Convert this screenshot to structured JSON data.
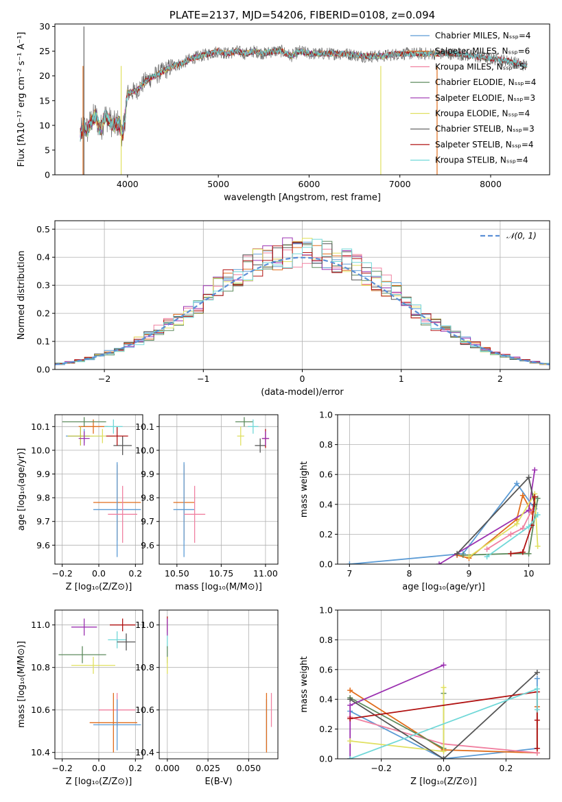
{
  "chart_data": [
    {
      "type": "line",
      "panel": "spectrum",
      "title": "PLATE=2137, MJD=54206, FIBERID=0108, z=0.094",
      "xlabel": "wavelength [Angstrom, rest frame]",
      "ylabel": "Flux [fλ10⁻¹⁷ erg cm⁻² s⁻¹ A⁻¹]",
      "xlim": [
        3200,
        8650
      ],
      "ylim": [
        0,
        30.5
      ],
      "xticks": [
        4000,
        5000,
        6000,
        7000,
        8000
      ],
      "yticks": [
        0,
        5,
        10,
        15,
        20,
        25,
        30
      ],
      "grid": false,
      "legend_position": "right",
      "data_spectrum_envelope": {
        "x": [
          3480,
          3520,
          3560,
          3600,
          3650,
          3700,
          3750,
          3800,
          3850,
          3900,
          3950,
          4000,
          4100,
          4200,
          4300,
          4400,
          4500,
          4600,
          4700,
          4800,
          4900,
          5000,
          5100,
          5200,
          5300,
          5400,
          5500,
          5600,
          5700,
          5800,
          5900,
          6000,
          6200,
          6400,
          6600,
          6800,
          7000,
          7200,
          7400,
          7600,
          7800,
          8000,
          8200,
          8400
        ],
        "y": [
          8,
          10,
          9,
          11,
          12,
          9,
          12,
          11,
          10,
          10.5,
          8,
          16.5,
          17,
          19,
          20,
          21,
          22,
          22.5,
          23.5,
          24,
          24.5,
          25,
          24.5,
          25,
          24.5,
          25,
          24.5,
          25,
          25,
          24,
          25,
          24.5,
          24.5,
          24.5,
          24,
          24,
          24.5,
          24.5,
          24.5,
          24.5,
          24,
          23.5,
          23,
          22
        ]
      },
      "series": [
        {
          "name": "Chabrier MILES, N_SSP=4"
        },
        {
          "name": "Salpeter MILES, N_SSP=6"
        },
        {
          "name": "Kroupa MILES, N_SSP=5"
        },
        {
          "name": "Chabrier ELODIE, N_SSP=4"
        },
        {
          "name": "Salpeter ELODIE, N_SSP=3"
        },
        {
          "name": "Kroupa ELODIE, N_SSP=4"
        },
        {
          "name": "Chabrier STELIB, N_SSP=3"
        },
        {
          "name": "Salpeter STELIB, N_SSP=4"
        },
        {
          "name": "Kroupa STELIB, N_SSP=4"
        }
      ]
    },
    {
      "type": "step",
      "panel": "residual-histogram",
      "xlabel": "(data-model)/error",
      "ylabel": "Normed distribution",
      "xlim": [
        -2.5,
        2.5
      ],
      "ylim": [
        0,
        0.53
      ],
      "xticks": [
        -2,
        -1,
        0,
        1,
        2
      ],
      "yticks": [
        0.0,
        0.1,
        0.2,
        0.3,
        0.4,
        0.5
      ],
      "grid": true,
      "legend_position": "top-right",
      "reference_curve": {
        "name": "𝒩(0, 1)",
        "mean": 0,
        "sigma": 1
      },
      "bins": {
        "start": -2.5,
        "width": 0.1,
        "count": 50
      }
    },
    {
      "type": "scatter-errorbar",
      "panel": "age-vs-Z",
      "xlabel": "Z [log₁₀(Z/Z⊙)]",
      "ylabel": "age  [log₁₀(age/yr)]",
      "xlim": [
        -0.24,
        0.24
      ],
      "ylim": [
        9.52,
        10.15
      ],
      "xticks": [
        -0.2,
        0.0,
        0.2
      ],
      "yticks": [
        9.6,
        9.7,
        9.8,
        9.9,
        10.0,
        10.1
      ],
      "grid": true,
      "points": [
        {
          "x": -0.08,
          "y": 10.06,
          "xerr": 0.1,
          "yerr": 0.03,
          "color": "#5b9bd5"
        },
        {
          "x": -0.03,
          "y": 10.1,
          "xerr": 0.08,
          "yerr": 0.03,
          "color": "#e06c1b"
        },
        {
          "x": -0.1,
          "y": 10.06,
          "xerr": 0.07,
          "yerr": 0.04,
          "color": "#c0c040"
        },
        {
          "x": -0.08,
          "y": 10.12,
          "xerr": 0.12,
          "yerr": 0.02,
          "color": "#5c8a5c"
        },
        {
          "x": -0.08,
          "y": 10.05,
          "xerr": 0.03,
          "yerr": 0.03,
          "color": "#9b30b0"
        },
        {
          "x": 0.02,
          "y": 10.06,
          "xerr": 0.07,
          "yerr": 0.03,
          "color": "#e0e060"
        },
        {
          "x": 0.13,
          "y": 10.02,
          "xerr": 0.05,
          "yerr": 0.04,
          "color": "#555555"
        },
        {
          "x": 0.1,
          "y": 10.06,
          "xerr": 0.06,
          "yerr": 0.04,
          "color": "#b01010"
        },
        {
          "x": 0.08,
          "y": 10.1,
          "xerr": 0.05,
          "yerr": 0.03,
          "color": "#70d8d8"
        },
        {
          "x": 0.1,
          "y": 9.78,
          "xerr": 0.13,
          "yerr": 0.16,
          "color": "#e06c1b"
        },
        {
          "x": 0.1,
          "y": 9.75,
          "xerr": 0.13,
          "yerr": 0.2,
          "color": "#5b9bd5"
        },
        {
          "x": 0.13,
          "y": 9.73,
          "xerr": 0.08,
          "yerr": 0.12,
          "color": "#f080a0"
        }
      ]
    },
    {
      "type": "scatter-errorbar",
      "panel": "age-vs-mass",
      "xlabel": "mass [log₁₀(M/M⊙)]",
      "ylabel": "",
      "xlim": [
        10.4,
        11.07
      ],
      "ylim": [
        9.52,
        10.15
      ],
      "xticks": [
        10.5,
        10.75,
        11.0
      ],
      "yticks": [
        9.6,
        9.7,
        9.8,
        9.9,
        10.0,
        10.1
      ],
      "grid": true,
      "points": [
        {
          "x": 10.88,
          "y": 10.12,
          "xerr": 0.05,
          "yerr": 0.02,
          "color": "#5c8a5c"
        },
        {
          "x": 10.86,
          "y": 10.06,
          "xerr": 0.02,
          "yerr": 0.04,
          "color": "#e0e060"
        },
        {
          "x": 10.93,
          "y": 10.1,
          "xerr": 0.03,
          "yerr": 0.03,
          "color": "#70d8d8"
        },
        {
          "x": 10.97,
          "y": 10.02,
          "xerr": 0.03,
          "yerr": 0.03,
          "color": "#555555"
        },
        {
          "x": 11.0,
          "y": 10.05,
          "xerr": 0.02,
          "yerr": 0.04,
          "color": "#b01010"
        },
        {
          "x": 11.0,
          "y": 10.05,
          "xerr": 0.02,
          "yerr": 0.03,
          "color": "#9b30b0"
        },
        {
          "x": 10.54,
          "y": 9.78,
          "xerr": 0.06,
          "yerr": 0.16,
          "color": "#e06c1b"
        },
        {
          "x": 10.54,
          "y": 9.75,
          "xerr": 0.06,
          "yerr": 0.2,
          "color": "#5b9bd5"
        },
        {
          "x": 10.6,
          "y": 9.73,
          "xerr": 0.06,
          "yerr": 0.12,
          "color": "#f080a0"
        }
      ]
    },
    {
      "type": "line",
      "panel": "mass-weight-vs-age",
      "xlabel": "age  [log₁₀(age/yr)]",
      "ylabel": "mass weight",
      "xlim": [
        6.8,
        10.35
      ],
      "ylim": [
        0,
        1.0
      ],
      "xticks": [
        7,
        8,
        9,
        10
      ],
      "yticks": [
        0.0,
        0.2,
        0.4,
        0.6,
        0.8,
        1.0
      ],
      "grid": true,
      "series": [
        {
          "x": [
            7.0,
            8.9,
            9.8,
            10.1
          ],
          "y": [
            0.0,
            0.07,
            0.54,
            0.37
          ],
          "color": "#5b9bd5"
        },
        {
          "x": [
            8.8,
            9.0,
            9.8,
            9.9,
            10.05
          ],
          "y": [
            0.06,
            0.04,
            0.3,
            0.46,
            0.35
          ],
          "color": "#e06c1b"
        },
        {
          "x": [
            9.3,
            9.7,
            9.9,
            10.1
          ],
          "y": [
            0.1,
            0.2,
            0.24,
            0.4
          ],
          "color": "#f080a0"
        },
        {
          "x": [
            8.9,
            9.7,
            10.0,
            10.15
          ],
          "y": [
            0.06,
            0.07,
            0.07,
            0.44
          ],
          "color": "#5c8a5c"
        },
        {
          "x": [
            8.5,
            10.0,
            10.1
          ],
          "y": [
            0.0,
            0.36,
            0.63
          ],
          "color": "#9b30b0"
        },
        {
          "x": [
            9.0,
            9.8,
            10.1,
            10.15
          ],
          "y": [
            0.05,
            0.27,
            0.47,
            0.12
          ],
          "color": "#e0e060"
        },
        {
          "x": [
            8.8,
            10.0,
            10.1
          ],
          "y": [
            0.07,
            0.58,
            0.4
          ],
          "color": "#555555"
        },
        {
          "x": [
            9.7,
            9.9,
            10.05,
            10.1
          ],
          "y": [
            0.07,
            0.08,
            0.26,
            0.45
          ],
          "color": "#b01010"
        },
        {
          "x": [
            9.3,
            10.0,
            10.15
          ],
          "y": [
            0.05,
            0.25,
            0.33
          ],
          "color": "#70d8d8"
        }
      ]
    },
    {
      "type": "scatter-errorbar",
      "panel": "mass-vs-Z",
      "xlabel": "Z [log₁₀(Z/Z⊙)]",
      "ylabel": "mass [log₁₀(M/M⊙)]",
      "xlim": [
        -0.24,
        0.24
      ],
      "ylim": [
        10.37,
        11.07
      ],
      "xticks": [
        -0.2,
        0.0,
        0.2
      ],
      "yticks": [
        10.4,
        10.6,
        10.8,
        11.0
      ],
      "grid": true,
      "points": [
        {
          "x": -0.08,
          "y": 10.99,
          "xerr": 0.07,
          "yerr": 0.04,
          "color": "#9b30b0"
        },
        {
          "x": -0.09,
          "y": 10.86,
          "xerr": 0.13,
          "yerr": 0.04,
          "color": "#5c8a5c"
        },
        {
          "x": -0.03,
          "y": 10.81,
          "xerr": 0.12,
          "yerr": 0.04,
          "color": "#e0e060"
        },
        {
          "x": 0.13,
          "y": 11.0,
          "xerr": 0.07,
          "yerr": 0.03,
          "color": "#b01010"
        },
        {
          "x": 0.1,
          "y": 10.93,
          "xerr": 0.05,
          "yerr": 0.04,
          "color": "#70d8d8"
        },
        {
          "x": 0.15,
          "y": 10.92,
          "xerr": 0.05,
          "yerr": 0.04,
          "color": "#555555"
        },
        {
          "x": 0.1,
          "y": 10.6,
          "xerr": 0.1,
          "yerr": 0.08,
          "color": "#f080a0"
        },
        {
          "x": 0.08,
          "y": 10.54,
          "xerr": 0.13,
          "yerr": 0.14,
          "color": "#e06c1b"
        },
        {
          "x": 0.1,
          "y": 10.53,
          "xerr": 0.13,
          "yerr": 0.12,
          "color": "#5b9bd5"
        }
      ]
    },
    {
      "type": "scatter-errorbar",
      "panel": "mass-vs-EBV",
      "xlabel": "E(B-V)",
      "ylabel": "",
      "xlim": [
        -0.005,
        0.068
      ],
      "ylim": [
        10.37,
        11.07
      ],
      "xticks": [
        0.0,
        0.025,
        0.05
      ],
      "yticks": [
        10.4,
        10.6,
        10.8,
        11.0
      ],
      "grid": true,
      "points": [
        {
          "x": 0.0,
          "y": 11.0,
          "xerr": 0.0,
          "yerr": 0.04,
          "color": "#b01010"
        },
        {
          "x": 0.0,
          "y": 10.93,
          "xerr": 0.0,
          "yerr": 0.04,
          "color": "#70d8d8"
        },
        {
          "x": 0.0,
          "y": 10.86,
          "xerr": 0.0,
          "yerr": 0.04,
          "color": "#5c8a5c"
        },
        {
          "x": 0.0,
          "y": 10.81,
          "xerr": 0.0,
          "yerr": 0.04,
          "color": "#e0e060"
        },
        {
          "x": 0.0,
          "y": 10.99,
          "xerr": 0.0,
          "yerr": 0.04,
          "color": "#9b30b0"
        },
        {
          "x": 0.061,
          "y": 10.53,
          "xerr": 0.0,
          "yerr": 0.12,
          "color": "#5b9bd5"
        },
        {
          "x": 0.061,
          "y": 10.54,
          "xerr": 0.0,
          "yerr": 0.14,
          "color": "#e06c1b"
        },
        {
          "x": 0.064,
          "y": 10.6,
          "xerr": 0.0,
          "yerr": 0.08,
          "color": "#f080a0"
        }
      ]
    },
    {
      "type": "line",
      "panel": "mass-weight-vs-Z",
      "xlabel": "Z [log₁₀(Z/Z⊙)]",
      "ylabel": "mass weight",
      "xlim": [
        -0.34,
        0.34
      ],
      "ylim": [
        0,
        1.0
      ],
      "xticks": [
        -0.2,
        0.0,
        0.2
      ],
      "yticks": [
        0.0,
        0.2,
        0.4,
        0.6,
        0.8,
        1.0
      ],
      "grid": true,
      "series": [
        {
          "x": [
            -0.3,
            0.0,
            0.3,
            0.3
          ],
          "y": [
            0.32,
            0.0,
            0.07,
            0.54
          ],
          "color": "#5b9bd5"
        },
        {
          "x": [
            -0.3,
            0.0,
            0.3,
            0.3
          ],
          "y": [
            0.46,
            0.06,
            0.04,
            0.35
          ],
          "color": "#e06c1b"
        },
        {
          "x": [
            -0.3,
            0.0,
            0.3
          ],
          "y": [
            0.28,
            0.1,
            0.04
          ],
          "color": "#f080a0"
        },
        {
          "x": [
            -0.3,
            0.0,
            0.0
          ],
          "y": [
            0.41,
            0.07,
            0.44
          ],
          "color": "#5c8a5c"
        },
        {
          "x": [
            -0.3,
            -0.3,
            0.0
          ],
          "y": [
            0.0,
            0.36,
            0.63
          ],
          "color": "#9b30b0"
        },
        {
          "x": [
            -0.3,
            0.0,
            0.0
          ],
          "y": [
            0.12,
            0.05,
            0.48
          ],
          "color": "#e0e060"
        },
        {
          "x": [
            -0.3,
            0.0,
            0.3
          ],
          "y": [
            0.4,
            0.0,
            0.58
          ],
          "color": "#555555"
        },
        {
          "x": [
            -0.3,
            0.3,
            0.3,
            0.3
          ],
          "y": [
            0.27,
            0.45,
            0.26,
            0.07
          ],
          "color": "#b01010"
        },
        {
          "x": [
            -0.3,
            0.3,
            0.3
          ],
          "y": [
            0.0,
            0.47,
            0.33
          ],
          "color": "#70d8d8"
        }
      ]
    }
  ]
}
